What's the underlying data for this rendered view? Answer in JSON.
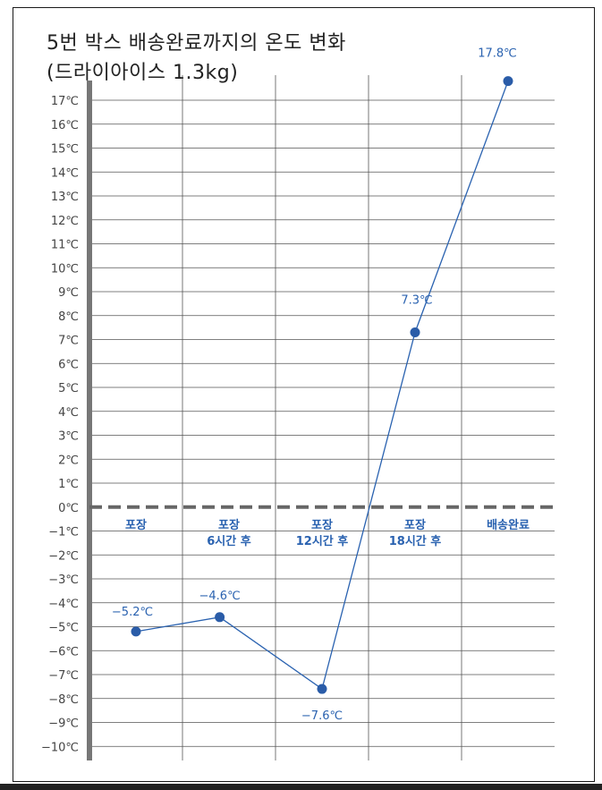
{
  "chart_data": {
    "type": "line",
    "title": "5번 박스 배송완료까지의 온도 변화",
    "subtitle": "(드라이아이스 1.3kg)",
    "unit": "℃",
    "categories": [
      "포장",
      "포장\n6시간 후",
      "포장\n12시간 후",
      "포장\n18시간 후",
      "배송완료"
    ],
    "x_positions": [
      0.5,
      1.4,
      2.5,
      3.5,
      4.5
    ],
    "values": [
      -5.2,
      -4.6,
      -7.6,
      7.3,
      17.8
    ],
    "data_labels": [
      "-5.2℃",
      "-4.6℃",
      "-7.6℃",
      "7.3℃",
      "17.8℃"
    ],
    "y_ticks": [
      17,
      16,
      15,
      14,
      13,
      12,
      11,
      10,
      9,
      8,
      7,
      6,
      5,
      4,
      3,
      2,
      1,
      0,
      -1,
      -2,
      -3,
      -4,
      -5,
      -6,
      -7,
      -8,
      -9,
      -10
    ],
    "ylim": [
      -10,
      18
    ],
    "zero_line": "dashed",
    "grid": true,
    "colors": {
      "line": "#2a62b0",
      "grid": "#555555",
      "axis": "#777777",
      "zero": "#666666"
    }
  }
}
